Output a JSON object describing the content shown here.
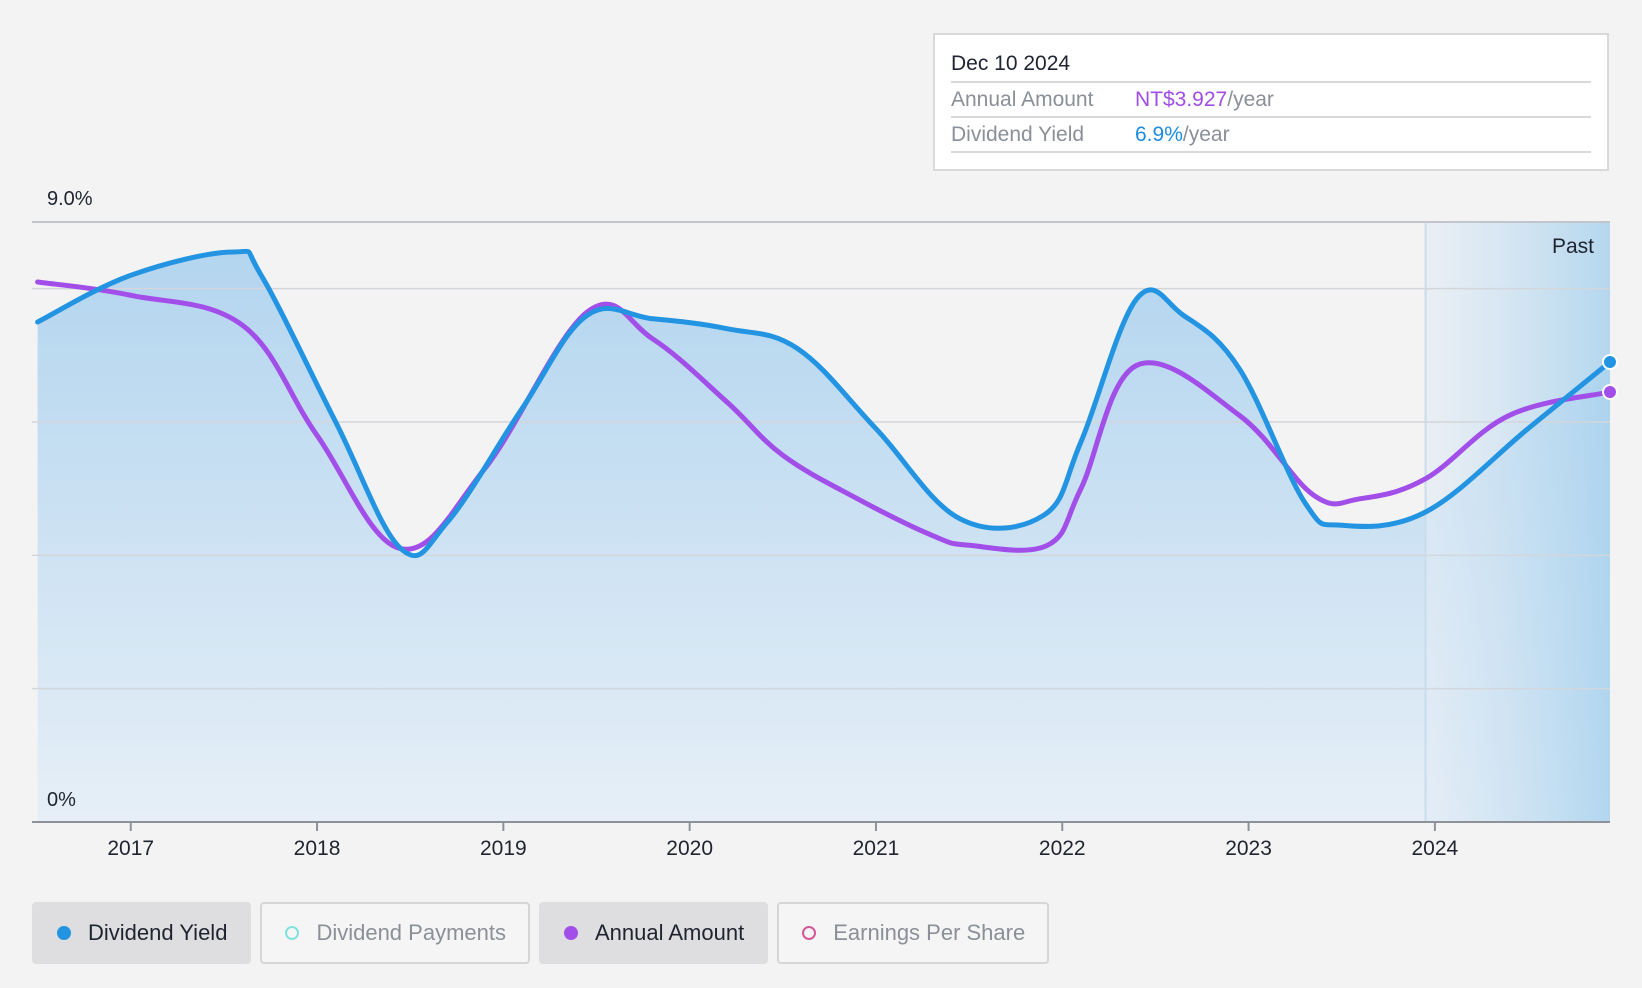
{
  "tooltip": {
    "date": "Dec 10 2024",
    "annual_amount_label": "Annual Amount",
    "annual_amount_value": "NT$3.927",
    "annual_amount_unit": "/year",
    "dividend_yield_label": "Dividend Yield",
    "dividend_yield_value": "6.9%",
    "dividend_yield_unit": "/year"
  },
  "legend": [
    {
      "label": "Dividend Yield",
      "active": true,
      "color": "#2394e2"
    },
    {
      "label": "Dividend Payments",
      "active": false,
      "color": "#7fe3de"
    },
    {
      "label": "Annual Amount",
      "active": true,
      "color": "#a24ee8"
    },
    {
      "label": "Earnings Per Share",
      "active": false,
      "color": "#d4579a"
    }
  ],
  "colors": {
    "dividend_yield": "#2394e2",
    "annual_amount": "#a24ee8",
    "area_fill": "#b7d8f0",
    "past_band": "#dce8f3"
  },
  "chart_data": {
    "type": "area",
    "y_top_label": "9.0%",
    "y_bottom_label": "0%",
    "ylim": [
      0,
      9.0
    ],
    "y_gridlines": [
      2.0,
      4.0,
      6.0,
      8.0
    ],
    "xlim": [
      2016.47,
      2024.94
    ],
    "x_ticks": [
      2017,
      2018,
      2019,
      2020,
      2021,
      2022,
      2023,
      2024
    ],
    "x_tick_labels": [
      "2017",
      "2018",
      "2019",
      "2020",
      "2021",
      "2022",
      "2023",
      "2024"
    ],
    "past_region": {
      "label": "Past",
      "start": 2023.95
    },
    "series": [
      {
        "name": "Dividend Yield",
        "x": [
          2016.5,
          2017.0,
          2017.55,
          2017.7,
          2018.1,
          2018.45,
          2018.7,
          2019.1,
          2019.45,
          2019.8,
          2020.2,
          2020.58,
          2021.0,
          2021.45,
          2021.9,
          2022.1,
          2022.4,
          2022.65,
          2022.95,
          2023.3,
          2023.5,
          2023.95,
          2024.5,
          2024.94
        ],
        "values": [
          7.5,
          8.2,
          8.55,
          8.2,
          6.0,
          4.1,
          4.5,
          6.2,
          7.6,
          7.55,
          7.4,
          7.1,
          5.9,
          4.55,
          4.6,
          5.7,
          7.85,
          7.6,
          6.8,
          4.8,
          4.45,
          4.65,
          5.9,
          6.9
        ]
      },
      {
        "name": "Annual Amount",
        "x": [
          2016.5,
          2017.0,
          2017.6,
          2018.0,
          2018.45,
          2018.9,
          2019.45,
          2019.8,
          2020.2,
          2020.5,
          2020.9,
          2021.3,
          2021.5,
          2021.92,
          2022.1,
          2022.4,
          2022.95,
          2023.35,
          2023.6,
          2023.95,
          2024.4,
          2024.94
        ],
        "values": [
          8.1,
          7.9,
          7.45,
          5.8,
          4.1,
          5.3,
          7.65,
          7.25,
          6.3,
          5.5,
          4.85,
          4.3,
          4.15,
          4.15,
          5.0,
          6.85,
          6.1,
          4.9,
          4.85,
          5.15,
          6.1,
          6.45
        ]
      }
    ]
  }
}
